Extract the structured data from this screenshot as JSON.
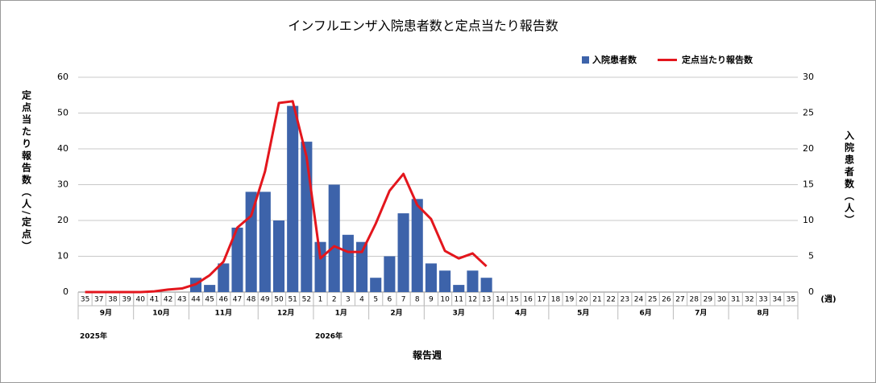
{
  "chart_data": {
    "type": "bar_line",
    "title": "インフルエンザ入院患者数と定点当たり報告数",
    "xlabel": "報告週",
    "x_unit": "(週)",
    "ylabel": "定点当たり報告数（人/定点）",
    "y2label": "入院患者数（人）",
    "categories": [
      "35",
      "37",
      "38",
      "39",
      "40",
      "41",
      "42",
      "43",
      "44",
      "45",
      "46",
      "47",
      "48",
      "49",
      "50",
      "51",
      "52",
      "1",
      "2",
      "3",
      "4",
      "5",
      "6",
      "7",
      "8",
      "9",
      "10",
      "11",
      "12",
      "13",
      "14",
      "15",
      "16",
      "17",
      "18",
      "19",
      "20",
      "21",
      "22",
      "23",
      "24",
      "25",
      "26",
      "27",
      "28",
      "29",
      "30",
      "31",
      "32",
      "33",
      "34",
      "35"
    ],
    "month_labels": [
      "9月",
      null,
      null,
      null,
      "10月",
      null,
      null,
      null,
      "11月",
      null,
      null,
      null,
      null,
      "12月",
      null,
      null,
      null,
      "1月",
      null,
      null,
      null,
      "2月",
      null,
      null,
      null,
      "3月",
      null,
      null,
      null,
      null,
      "4月",
      null,
      null,
      null,
      "5月",
      null,
      null,
      null,
      null,
      "6月",
      null,
      null,
      null,
      "7月",
      null,
      null,
      null,
      "8月",
      null,
      null,
      null,
      null
    ],
    "year_labels": [
      "2025年",
      null,
      null,
      null,
      null,
      null,
      null,
      null,
      null,
      null,
      null,
      null,
      null,
      null,
      null,
      null,
      null,
      "2026年",
      null,
      null,
      null,
      null,
      null,
      null,
      null,
      null,
      null,
      null,
      null,
      null,
      null,
      null,
      null,
      null,
      null,
      null,
      null,
      null,
      null,
      null,
      null,
      null,
      null,
      null,
      null,
      null,
      null,
      null,
      null,
      null,
      null,
      null
    ],
    "series": [
      {
        "name": "入院患者数",
        "kind": "bar",
        "axis": "y2",
        "color": "#3d63aa",
        "values": [
          0,
          0,
          0,
          0,
          0,
          0,
          0,
          0,
          2,
          1,
          4,
          9,
          14,
          14,
          10,
          26,
          21,
          7,
          15,
          8,
          7,
          2,
          5,
          11,
          13,
          4,
          3,
          1,
          3,
          2,
          null,
          null,
          null,
          null,
          null,
          null,
          null,
          null,
          null,
          null,
          null,
          null,
          null,
          null,
          null,
          null,
          null,
          null,
          null,
          null,
          null,
          null
        ]
      },
      {
        "name": "定点当たり報告数",
        "kind": "line",
        "axis": "y",
        "color": "#e3161d",
        "values": [
          0,
          0,
          0,
          0,
          0,
          0.2,
          0.7,
          1.0,
          2.2,
          4.7,
          8.5,
          18,
          21.3,
          33.7,
          52.8,
          53.3,
          37.8,
          9.4,
          12.8,
          11.2,
          11.2,
          19.1,
          28.3,
          33,
          24.3,
          20.4,
          11.5,
          9.4,
          10.8,
          7.2,
          null,
          null,
          null,
          null,
          null,
          null,
          null,
          null,
          null,
          null,
          null,
          null,
          null,
          null,
          null,
          null,
          null,
          null,
          null,
          null,
          null,
          null
        ]
      }
    ],
    "ylim": [
      0,
      60
    ],
    "yticks": [
      0,
      10,
      20,
      30,
      40,
      50,
      60
    ],
    "y2lim": [
      0,
      30
    ],
    "y2ticks": [
      0,
      5,
      10,
      15,
      20,
      25,
      30
    ],
    "grid": true,
    "legend": "top-right"
  }
}
